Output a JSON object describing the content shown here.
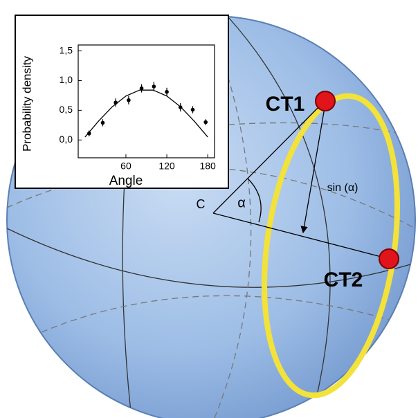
{
  "chart_data": {
    "type": "scatter",
    "xlabel": "Angle",
    "ylabel": "Probability density",
    "xlim": [
      -10,
      190
    ],
    "ylim": [
      -0.3,
      1.6
    ],
    "xticks": [
      60,
      120,
      180
    ],
    "yticks": [
      {
        "value": 0,
        "label": "0,0"
      },
      {
        "value": 0.5,
        "label": "0,5"
      },
      {
        "value": 1.0,
        "label": "1,0"
      },
      {
        "value": 1.5,
        "label": "1,5"
      }
    ],
    "series": [
      {
        "type": "scatter",
        "color": "#000000",
        "x": [
          6,
          26,
          45,
          64,
          83,
          101,
          120,
          140,
          158,
          177
        ],
        "values": [
          0.11,
          0.29,
          0.63,
          0.67,
          0.87,
          0.9,
          0.81,
          0.55,
          0.51,
          0.3
        ],
        "errors": [
          0.05,
          0.06,
          0.07,
          0.07,
          0.07,
          0.08,
          0.07,
          0.07,
          0.06,
          0.05
        ]
      },
      {
        "type": "line",
        "color": "#000000",
        "x": [
          0,
          20,
          40,
          60,
          80,
          100,
          120,
          140,
          160,
          180
        ],
        "values": [
          0.05,
          0.32,
          0.56,
          0.74,
          0.84,
          0.84,
          0.74,
          0.56,
          0.32,
          0.05
        ]
      }
    ]
  },
  "diagram": {
    "center_label": "C",
    "angle_label": "α",
    "distance_label": "sin (α)",
    "points": [
      "CT1",
      "CT2"
    ]
  }
}
